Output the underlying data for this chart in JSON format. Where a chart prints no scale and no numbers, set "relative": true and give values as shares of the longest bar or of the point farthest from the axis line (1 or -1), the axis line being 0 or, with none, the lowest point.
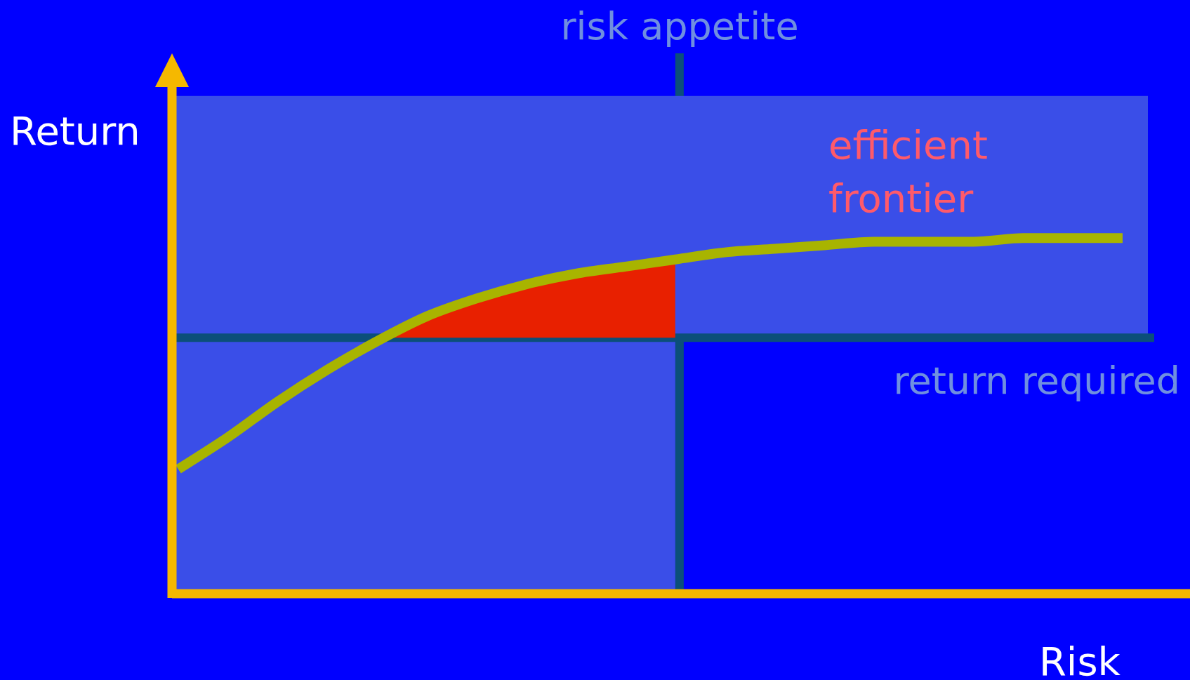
{
  "chart_data": {
    "type": "line",
    "relative": true,
    "xlabel": "Risk",
    "categories": [
      null,
      null,
      null,
      null,
      null,
      null,
      null,
      null,
      null,
      null,
      null,
      null,
      null,
      null,
      null,
      null,
      null,
      null,
      null,
      null
    ],
    "series": [
      {
        "type": "area",
        "color": "#e82000",
        "values": [
          null,
          null,
          null,
          null,
          0.71,
          0.78,
          0.83,
          0.87,
          0.9,
          0.92,
          0.94,
          null,
          null,
          null,
          null,
          null,
          null,
          null,
          null,
          null
        ]
      },
      {
        "color": "#a8b400",
        "values": [
          0.35,
          0.44,
          0.54,
          0.63,
          0.71,
          0.78,
          0.83,
          0.87,
          0.9,
          0.92,
          0.94,
          0.96,
          0.97,
          0.98,
          0.99,
          0.99,
          0.99,
          1,
          1,
          1
        ]
      }
    ],
    "ref_lines": [
      {
        "axis": "y",
        "value": 0.72,
        "label": "return required",
        "color": "#0b4f7a"
      }
    ],
    "bands": [
      {
        "axis": "y",
        "from": 0.72,
        "to": 1.4,
        "color": "#3a4ee8"
      }
    ],
    "annotations": [
      "Return",
      "risk appetite",
      "efficient frontier"
    ],
    "legend": false,
    "marker": "none",
    "line_style": "solid"
  }
}
